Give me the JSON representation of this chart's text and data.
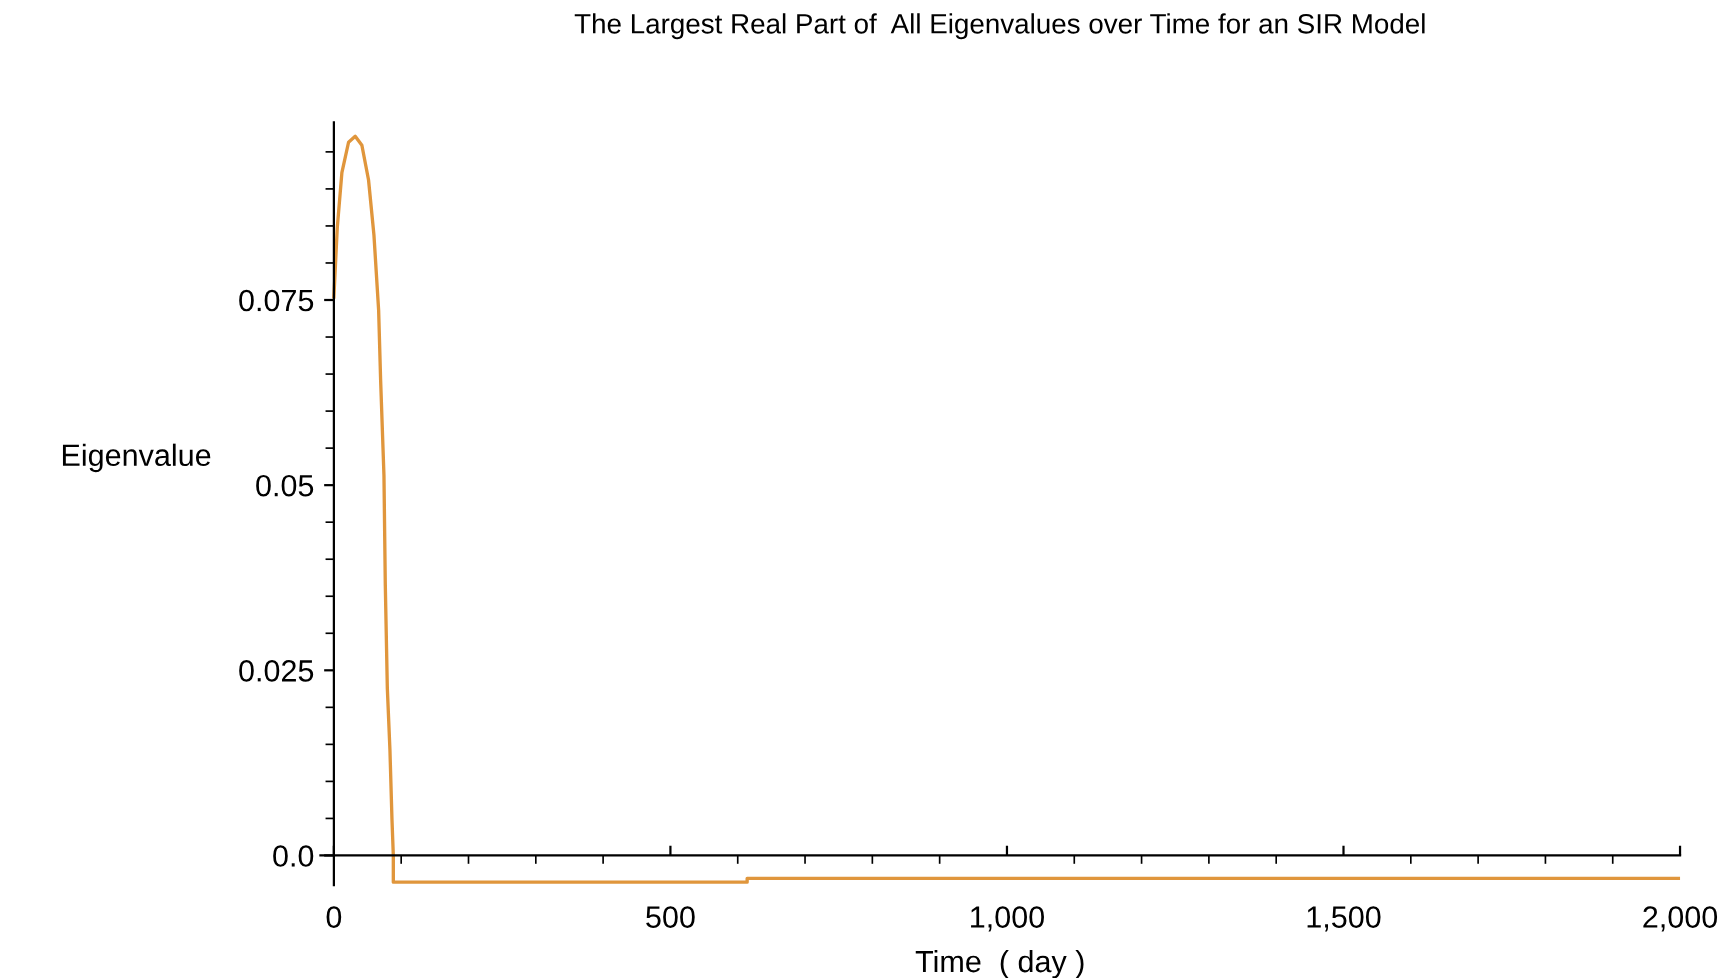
{
  "chart_data": {
    "type": "line",
    "title": "The Largest Real Part of  All Eigenvalues over Time for an SIR Model",
    "xlabel": "Time  ( day )",
    "ylabel": "Eigenvalue",
    "series": [
      {
        "color": "#e0963c",
        "x": [
          0,
          5,
          11.9,
          21.8,
          31.7,
          41.6,
          51.5,
          59.5,
          66.5,
          69.4,
          74.4,
          76.4,
          79.4,
          83.3,
          86.3,
          88.3,
          88.3,
          614,
          614,
          2000
        ],
        "values": [
          0.0754,
          0.0847,
          0.0922,
          0.0963,
          0.0971,
          0.0959,
          0.0912,
          0.0838,
          0.0736,
          0.0643,
          0.0513,
          0.0365,
          0.0226,
          0.0142,
          0.0049,
          0,
          -0.0036,
          -0.0036,
          -0.0031,
          -0.0031
        ]
      }
    ],
    "xlim": [
      -20,
      2000
    ],
    "ylim": [
      -0.004,
      0.099
    ],
    "xticks": [
      0,
      500,
      {
        "value": 1000,
        "label": "1,000"
      },
      {
        "value": 1500,
        "label": "1,500"
      },
      {
        "value": 2000,
        "label": "2,000"
      }
    ],
    "yticks": [
      {
        "value": 0,
        "label": "0.0"
      },
      {
        "value": 0.025,
        "label": "0.025"
      },
      {
        "value": 0.05,
        "label": "0.05"
      },
      {
        "value": 0.075,
        "label": "0.075"
      }
    ],
    "grid": false,
    "legend": false
  }
}
